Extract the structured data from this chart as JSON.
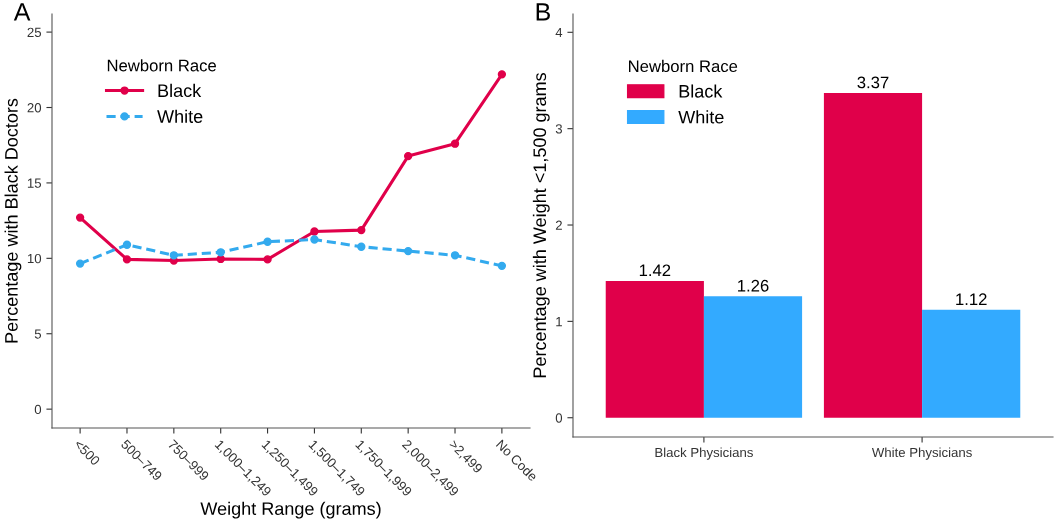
{
  "chart_data": [
    {
      "type": "line",
      "title": "A",
      "xlabel": "Weight Range (grams)",
      "ylabel": "Percentage with Black Doctors",
      "legend_title": "Newborn Race",
      "legend": "top left",
      "marker": "circle",
      "grid": false,
      "categories": [
        "<500",
        "500–749",
        "750–999",
        "1,000–1,249",
        "1,250–1,499",
        "1,500–1,749",
        "1,750–1,999",
        "2,000–2,499",
        ">2,499",
        "No Code"
      ],
      "series": [
        {
          "name": "Black",
          "color": "#e0004a",
          "line_style": "solid",
          "values": [
            12.7,
            9.93,
            9.85,
            9.96,
            9.93,
            11.78,
            11.87,
            16.78,
            17.6,
            22.2
          ]
        },
        {
          "name": "White",
          "color": "#33aaee",
          "line_style": "dashed",
          "values": [
            9.65,
            10.9,
            10.2,
            10.4,
            11.1,
            11.25,
            10.77,
            10.48,
            10.2,
            9.5
          ]
        }
      ],
      "ylim": [
        -1.25,
        26.2
      ],
      "yticks": [
        0,
        5,
        10,
        15,
        20,
        25
      ]
    },
    {
      "type": "bar",
      "title": "B",
      "ylabel": "Percentage with Weight <1,500 grams",
      "legend_title": "Newborn Race",
      "legend": "top left",
      "grid": false,
      "data_labels": true,
      "categories": [
        "Black Physicians",
        "White Physicians"
      ],
      "series": [
        {
          "name": "Black",
          "color": "#e0004a",
          "values": [
            1.42,
            3.37
          ]
        },
        {
          "name": "White",
          "color": "#33aaff",
          "values": [
            1.26,
            1.12
          ]
        }
      ],
      "ylim": [
        -0.2,
        4.19
      ],
      "yticks": [
        0,
        1,
        2,
        3,
        4
      ]
    }
  ]
}
